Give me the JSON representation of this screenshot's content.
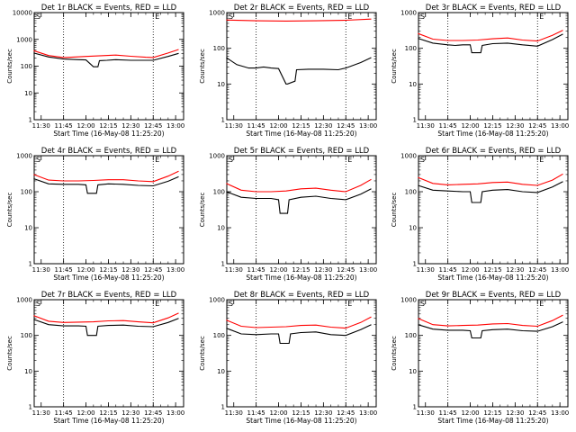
{
  "chart_data": [
    {
      "type": "line",
      "title": "Det 1r BLACK = Events, RED = LLD",
      "xlabel": "Start Time (16-May-08 11:25:20)",
      "ylabel": "Counts/sec",
      "ylim": [
        1,
        10000
      ],
      "yscale": "log",
      "xlim_minutes": [
        0,
        100
      ],
      "x_ticks": [
        "11:30",
        "11:45",
        "12:00",
        "12:15",
        "12:30",
        "12:45",
        "13:00"
      ],
      "y_ticks": [
        "1",
        "10",
        "100",
        "1000",
        "10000"
      ],
      "markers": [
        "11:45",
        "12:45"
      ],
      "marker_letters": [
        "S",
        "E"
      ],
      "grid": false,
      "series": [
        {
          "name": "Events",
          "color": "#000000",
          "x": [
            "11:25",
            "11:35",
            "11:45",
            "11:50",
            "11:55",
            "12:00",
            "12:05",
            "12:08",
            "12:09",
            "12:14",
            "12:20",
            "12:30",
            "12:40",
            "12:45",
            "12:55",
            "13:02"
          ],
          "values": [
            310,
            220,
            185,
            180,
            175,
            170,
            95,
            95,
            160,
            165,
            175,
            165,
            165,
            165,
            230,
            300
          ]
        },
        {
          "name": "LLD",
          "color": "#ff0000",
          "x": [
            "11:25",
            "11:35",
            "11:45",
            "11:50",
            "12:00",
            "12:10",
            "12:20",
            "12:30",
            "12:40",
            "12:45",
            "12:55",
            "13:02"
          ],
          "values": [
            380,
            250,
            210,
            215,
            230,
            245,
            260,
            235,
            215,
            210,
            310,
            420
          ]
        }
      ]
    },
    {
      "type": "line",
      "title": "Det 2r BLACK = Events, RED = LLD",
      "xlabel": "Start Time (16-May-08 11:25:20)",
      "ylabel": "Counts/sec",
      "ylim": [
        1,
        1000
      ],
      "yscale": "log",
      "xlim_minutes": [
        0,
        100
      ],
      "x_ticks": [
        "11:30",
        "11:45",
        "12:00",
        "12:15",
        "12:30",
        "12:45",
        "13:00"
      ],
      "y_ticks": [
        "1",
        "10",
        "100",
        "1000"
      ],
      "markers": [
        "11:45",
        "12:45"
      ],
      "marker_letters": [
        "S",
        "E"
      ],
      "grid": false,
      "series": [
        {
          "name": "Events",
          "color": "#000000",
          "x": [
            "11:25",
            "11:32",
            "11:40",
            "11:45",
            "11:50",
            "11:55",
            "12:00",
            "12:05",
            "12:06",
            "12:11",
            "12:12",
            "12:20",
            "12:30",
            "12:40",
            "12:45",
            "12:55",
            "13:02"
          ],
          "values": [
            55,
            35,
            28,
            28,
            30,
            28,
            27,
            10,
            10,
            12,
            25,
            26,
            26,
            25,
            28,
            40,
            55
          ]
        },
        {
          "name": "LLD",
          "color": "#ff0000",
          "x": [
            "11:25",
            "11:45",
            "12:05",
            "12:25",
            "12:45",
            "13:02"
          ],
          "values": [
            620,
            590,
            580,
            590,
            610,
            660
          ]
        }
      ]
    },
    {
      "type": "line",
      "title": "Det 3r BLACK = Events, RED = LLD",
      "xlabel": "Start Time (16-May-08 11:25:20)",
      "ylabel": "Counts/sec",
      "ylim": [
        1,
        1000
      ],
      "yscale": "log",
      "xlim_minutes": [
        0,
        100
      ],
      "x_ticks": [
        "11:30",
        "11:45",
        "12:00",
        "12:15",
        "12:30",
        "12:45",
        "13:00"
      ],
      "y_ticks": [
        "1",
        "10",
        "100",
        "1000"
      ],
      "markers": [
        "11:45",
        "12:45"
      ],
      "marker_letters": [
        "S",
        "E"
      ],
      "grid": false,
      "series": [
        {
          "name": "Events",
          "color": "#000000",
          "x": [
            "11:25",
            "11:35",
            "11:45",
            "11:50",
            "11:55",
            "12:00",
            "12:01",
            "12:07",
            "12:08",
            "12:15",
            "12:25",
            "12:35",
            "12:45",
            "12:55",
            "13:02"
          ],
          "values": [
            190,
            140,
            125,
            120,
            125,
            125,
            75,
            75,
            120,
            135,
            140,
            125,
            115,
            175,
            250
          ]
        },
        {
          "name": "LLD",
          "color": "#ff0000",
          "x": [
            "11:25",
            "11:35",
            "11:45",
            "11:55",
            "12:05",
            "12:15",
            "12:25",
            "12:35",
            "12:45",
            "12:55",
            "13:02"
          ],
          "values": [
            260,
            180,
            165,
            165,
            170,
            185,
            195,
            170,
            160,
            230,
            320
          ]
        }
      ]
    },
    {
      "type": "line",
      "title": "Det 4r BLACK = Events, RED = LLD",
      "xlabel": "Start Time (16-May-08 11:25:20)",
      "ylabel": "Counts/sec",
      "ylim": [
        1,
        1000
      ],
      "yscale": "log",
      "xlim_minutes": [
        0,
        100
      ],
      "x_ticks": [
        "11:30",
        "11:45",
        "12:00",
        "12:15",
        "12:30",
        "12:45",
        "13:00"
      ],
      "y_ticks": [
        "1",
        "10",
        "100",
        "1000"
      ],
      "markers": [
        "11:45",
        "12:45"
      ],
      "marker_letters": [
        "S",
        "E"
      ],
      "grid": false,
      "series": [
        {
          "name": "Events",
          "color": "#000000",
          "x": [
            "11:25",
            "11:35",
            "11:45",
            "11:55",
            "12:00",
            "12:01",
            "12:07",
            "12:08",
            "12:15",
            "12:25",
            "12:35",
            "12:45",
            "12:55",
            "13:02"
          ],
          "values": [
            230,
            165,
            160,
            160,
            155,
            90,
            90,
            155,
            165,
            160,
            150,
            145,
            195,
            260
          ]
        },
        {
          "name": "LLD",
          "color": "#ff0000",
          "x": [
            "11:25",
            "11:35",
            "11:45",
            "11:55",
            "12:05",
            "12:15",
            "12:25",
            "12:35",
            "12:45",
            "12:55",
            "13:02"
          ],
          "values": [
            300,
            210,
            200,
            200,
            205,
            215,
            215,
            200,
            190,
            270,
            370
          ]
        }
      ]
    },
    {
      "type": "line",
      "title": "Det 5r BLACK = Events, RED = LLD",
      "xlabel": "Start Time (16-May-08 11:25:20)",
      "ylabel": "Counts/sec",
      "ylim": [
        1,
        1000
      ],
      "yscale": "log",
      "xlim_minutes": [
        0,
        100
      ],
      "x_ticks": [
        "11:30",
        "11:45",
        "12:00",
        "12:15",
        "12:30",
        "12:45",
        "13:00"
      ],
      "y_ticks": [
        "1",
        "10",
        "100",
        "1000"
      ],
      "markers": [
        "11:45",
        "12:45"
      ],
      "marker_letters": [
        "S",
        "E"
      ],
      "grid": false,
      "series": [
        {
          "name": "Events",
          "color": "#000000",
          "x": [
            "11:25",
            "11:35",
            "11:45",
            "11:55",
            "12:00",
            "12:01",
            "12:06",
            "12:07",
            "12:15",
            "12:25",
            "12:35",
            "12:45",
            "12:55",
            "13:02"
          ],
          "values": [
            100,
            70,
            65,
            65,
            60,
            25,
            25,
            60,
            70,
            75,
            65,
            60,
            85,
            120
          ]
        },
        {
          "name": "LLD",
          "color": "#ff0000",
          "x": [
            "11:25",
            "11:35",
            "11:45",
            "11:55",
            "12:05",
            "12:15",
            "12:25",
            "12:35",
            "12:45",
            "12:55",
            "13:02"
          ],
          "values": [
            170,
            110,
            100,
            100,
            105,
            120,
            125,
            110,
            100,
            150,
            220
          ]
        }
      ]
    },
    {
      "type": "line",
      "title": "Det 6r BLACK = Events, RED = LLD",
      "xlabel": "Start Time (16-May-08 11:25:20)",
      "ylabel": "Counts/sec",
      "ylim": [
        1,
        1000
      ],
      "yscale": "log",
      "xlim_minutes": [
        0,
        100
      ],
      "x_ticks": [
        "11:30",
        "11:45",
        "12:00",
        "12:15",
        "12:30",
        "12:45",
        "13:00"
      ],
      "y_ticks": [
        "1",
        "10",
        "100",
        "1000"
      ],
      "markers": [
        "11:45",
        "12:45"
      ],
      "marker_letters": [
        "S",
        "E"
      ],
      "grid": false,
      "series": [
        {
          "name": "Events",
          "color": "#000000",
          "x": [
            "11:25",
            "11:35",
            "11:45",
            "11:55",
            "12:00",
            "12:01",
            "12:07",
            "12:08",
            "12:15",
            "12:25",
            "12:35",
            "12:45",
            "12:55",
            "13:02"
          ],
          "values": [
            150,
            110,
            105,
            100,
            100,
            50,
            50,
            100,
            110,
            115,
            100,
            95,
            135,
            190
          ]
        },
        {
          "name": "LLD",
          "color": "#ff0000",
          "x": [
            "11:25",
            "11:35",
            "11:45",
            "11:55",
            "12:05",
            "12:15",
            "12:25",
            "12:35",
            "12:45",
            "12:55",
            "13:02"
          ],
          "values": [
            250,
            170,
            155,
            160,
            165,
            180,
            185,
            160,
            150,
            210,
            310
          ]
        }
      ]
    },
    {
      "type": "line",
      "title": "Det 7r BLACK = Events, RED = LLD",
      "xlabel": "Start Time (16-May-08 11:25:20)",
      "ylabel": "Counts/sec",
      "ylim": [
        1,
        1000
      ],
      "yscale": "log",
      "xlim_minutes": [
        0,
        100
      ],
      "x_ticks": [
        "11:30",
        "11:45",
        "12:00",
        "12:15",
        "12:30",
        "12:45",
        "13:00"
      ],
      "y_ticks": [
        "1",
        "10",
        "100",
        "1000"
      ],
      "markers": [
        "11:45",
        "12:45"
      ],
      "marker_letters": [
        "S",
        "E"
      ],
      "grid": false,
      "series": [
        {
          "name": "Events",
          "color": "#000000",
          "x": [
            "11:25",
            "11:35",
            "11:45",
            "11:55",
            "12:00",
            "12:01",
            "12:07",
            "12:08",
            "12:15",
            "12:25",
            "12:35",
            "12:45",
            "12:55",
            "13:02"
          ],
          "values": [
            280,
            200,
            185,
            185,
            180,
            100,
            100,
            180,
            190,
            195,
            180,
            175,
            230,
            300
          ]
        },
        {
          "name": "LLD",
          "color": "#ff0000",
          "x": [
            "11:25",
            "11:35",
            "11:45",
            "11:55",
            "12:05",
            "12:15",
            "12:25",
            "12:35",
            "12:45",
            "12:55",
            "13:02"
          ],
          "values": [
            360,
            250,
            230,
            235,
            240,
            255,
            260,
            240,
            225,
            310,
            420
          ]
        }
      ]
    },
    {
      "type": "line",
      "title": "Det 8r BLACK = Events, RED = LLD",
      "xlabel": "Start Time (16-May-08 11:25:20)",
      "ylabel": "Counts/sec",
      "ylim": [
        1,
        1000
      ],
      "yscale": "log",
      "xlim_minutes": [
        0,
        100
      ],
      "x_ticks": [
        "11:30",
        "11:45",
        "12:00",
        "12:15",
        "12:30",
        "12:45",
        "13:00"
      ],
      "y_ticks": [
        "1",
        "10",
        "100",
        "1000"
      ],
      "markers": [
        "11:45",
        "12:45"
      ],
      "marker_letters": [
        "S",
        "E"
      ],
      "grid": false,
      "series": [
        {
          "name": "Events",
          "color": "#000000",
          "x": [
            "11:25",
            "11:35",
            "11:45",
            "11:55",
            "12:00",
            "12:01",
            "12:07",
            "12:08",
            "12:15",
            "12:25",
            "12:35",
            "12:45",
            "12:55",
            "13:02"
          ],
          "values": [
            160,
            110,
            105,
            110,
            110,
            60,
            60,
            110,
            120,
            125,
            105,
            100,
            145,
            200
          ]
        },
        {
          "name": "LLD",
          "color": "#ff0000",
          "x": [
            "11:25",
            "11:35",
            "11:45",
            "11:55",
            "12:05",
            "12:15",
            "12:25",
            "12:35",
            "12:45",
            "12:55",
            "13:02"
          ],
          "values": [
            270,
            180,
            165,
            170,
            175,
            190,
            195,
            170,
            160,
            230,
            330
          ]
        }
      ]
    },
    {
      "type": "line",
      "title": "Det 9r BLACK = Events, RED = LLD",
      "xlabel": "Start Time (16-May-08 11:25:20)",
      "ylabel": "Counts/sec",
      "ylim": [
        1,
        1000
      ],
      "yscale": "log",
      "xlim_minutes": [
        0,
        100
      ],
      "x_ticks": [
        "11:30",
        "11:45",
        "12:00",
        "12:15",
        "12:30",
        "12:45",
        "13:00"
      ],
      "y_ticks": [
        "1",
        "10",
        "100",
        "1000"
      ],
      "markers": [
        "11:45",
        "12:45"
      ],
      "marker_letters": [
        "S",
        "E"
      ],
      "grid": false,
      "series": [
        {
          "name": "Events",
          "color": "#000000",
          "x": [
            "11:25",
            "11:35",
            "11:45",
            "11:55",
            "12:00",
            "12:01",
            "12:07",
            "12:08",
            "12:15",
            "12:25",
            "12:35",
            "12:45",
            "12:55",
            "13:02"
          ],
          "values": [
            200,
            150,
            140,
            140,
            135,
            85,
            85,
            135,
            145,
            150,
            135,
            130,
            175,
            240
          ]
        },
        {
          "name": "LLD",
          "color": "#ff0000",
          "x": [
            "11:25",
            "11:35",
            "11:45",
            "11:55",
            "12:05",
            "12:15",
            "12:25",
            "12:35",
            "12:45",
            "12:55",
            "13:02"
          ],
          "values": [
            300,
            200,
            185,
            190,
            195,
            210,
            215,
            190,
            180,
            260,
            370
          ]
        }
      ]
    }
  ]
}
